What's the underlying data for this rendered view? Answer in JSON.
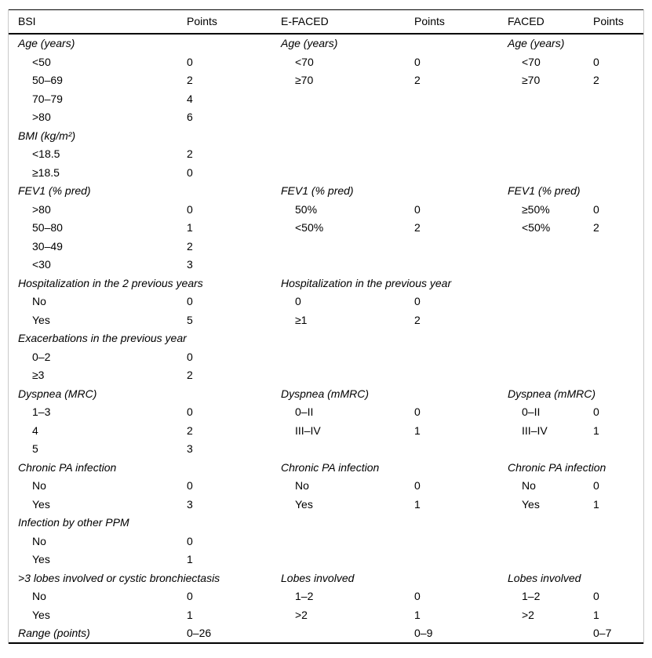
{
  "colors": {
    "background": "#ffffff",
    "text": "#000000",
    "rule": "#000000",
    "frame_border": "#c9c9c9"
  },
  "table": {
    "headers": [
      "BSI",
      "Points",
      "E-FACED",
      "Points",
      "FACED",
      "Points"
    ],
    "rows": [
      [
        [
          "Age (years)",
          "sec"
        ],
        [
          "",
          ""
        ],
        [
          "Age (years)",
          "sec"
        ],
        [
          "",
          ""
        ],
        [
          "Age (years)",
          "sec"
        ],
        [
          "",
          ""
        ]
      ],
      [
        [
          "<50",
          "item"
        ],
        [
          "0",
          ""
        ],
        [
          "<70",
          "item"
        ],
        [
          "0",
          ""
        ],
        [
          "<70",
          "item"
        ],
        [
          "0",
          ""
        ]
      ],
      [
        [
          "50–69",
          "item"
        ],
        [
          "2",
          ""
        ],
        [
          "≥70",
          "item"
        ],
        [
          "2",
          ""
        ],
        [
          "≥70",
          "item"
        ],
        [
          "2",
          ""
        ]
      ],
      [
        [
          "70–79",
          "item"
        ],
        [
          "4",
          ""
        ],
        [
          "",
          ""
        ],
        [
          "",
          ""
        ],
        [
          "",
          ""
        ],
        [
          "",
          ""
        ]
      ],
      [
        [
          ">80",
          "item"
        ],
        [
          "6",
          ""
        ],
        [
          "",
          ""
        ],
        [
          "",
          ""
        ],
        [
          "",
          ""
        ],
        [
          "",
          ""
        ]
      ],
      [
        [
          "BMI (kg/m²)",
          "sec"
        ],
        [
          "",
          ""
        ],
        [
          "",
          ""
        ],
        [
          "",
          ""
        ],
        [
          "",
          ""
        ],
        [
          "",
          ""
        ]
      ],
      [
        [
          "<18.5",
          "item"
        ],
        [
          "2",
          ""
        ],
        [
          "",
          ""
        ],
        [
          "",
          ""
        ],
        [
          "",
          ""
        ],
        [
          "",
          ""
        ]
      ],
      [
        [
          "≥18.5",
          "item"
        ],
        [
          "0",
          ""
        ],
        [
          "",
          ""
        ],
        [
          "",
          ""
        ],
        [
          "",
          ""
        ],
        [
          "",
          ""
        ]
      ],
      [
        [
          "FEV1 (% pred)",
          "sec"
        ],
        [
          "",
          ""
        ],
        [
          "FEV1 (% pred)",
          "sec"
        ],
        [
          "",
          ""
        ],
        [
          "FEV1 (% pred)",
          "sec"
        ],
        [
          "",
          ""
        ]
      ],
      [
        [
          ">80",
          "item"
        ],
        [
          "0",
          ""
        ],
        [
          "50%",
          "item"
        ],
        [
          "0",
          ""
        ],
        [
          "≥50%",
          "item"
        ],
        [
          "0",
          ""
        ]
      ],
      [
        [
          "50–80",
          "item"
        ],
        [
          "1",
          ""
        ],
        [
          "<50%",
          "item"
        ],
        [
          "2",
          ""
        ],
        [
          "<50%",
          "item"
        ],
        [
          "2",
          ""
        ]
      ],
      [
        [
          "30–49",
          "item"
        ],
        [
          "2",
          ""
        ],
        [
          "",
          ""
        ],
        [
          "",
          ""
        ],
        [
          "",
          ""
        ],
        [
          "",
          ""
        ]
      ],
      [
        [
          "<30",
          "item"
        ],
        [
          "3",
          ""
        ],
        [
          "",
          ""
        ],
        [
          "",
          ""
        ],
        [
          "",
          ""
        ],
        [
          "",
          ""
        ]
      ],
      [
        [
          "Hospitalization in the 2 previous years",
          "sec"
        ],
        [
          "",
          ""
        ],
        [
          "Hospitalization in the previous year",
          "sec"
        ],
        [
          "",
          ""
        ],
        [
          "",
          ""
        ],
        [
          "",
          ""
        ]
      ],
      [
        [
          "No",
          "item"
        ],
        [
          "0",
          ""
        ],
        [
          "0",
          "item"
        ],
        [
          "0",
          ""
        ],
        [
          "",
          ""
        ],
        [
          "",
          ""
        ]
      ],
      [
        [
          "Yes",
          "item"
        ],
        [
          "5",
          ""
        ],
        [
          "≥1",
          "item"
        ],
        [
          "2",
          ""
        ],
        [
          "",
          ""
        ],
        [
          "",
          ""
        ]
      ],
      [
        [
          "Exacerbations in the previous year",
          "sec"
        ],
        [
          "",
          ""
        ],
        [
          "",
          ""
        ],
        [
          "",
          ""
        ],
        [
          "",
          ""
        ],
        [
          "",
          ""
        ]
      ],
      [
        [
          "0–2",
          "item"
        ],
        [
          "0",
          ""
        ],
        [
          "",
          ""
        ],
        [
          "",
          ""
        ],
        [
          "",
          ""
        ],
        [
          "",
          ""
        ]
      ],
      [
        [
          "≥3",
          "item"
        ],
        [
          "2",
          ""
        ],
        [
          "",
          ""
        ],
        [
          "",
          ""
        ],
        [
          "",
          ""
        ],
        [
          "",
          ""
        ]
      ],
      [
        [
          "Dyspnea (MRC)",
          "sec"
        ],
        [
          "",
          ""
        ],
        [
          "Dyspnea (mMRC)",
          "sec"
        ],
        [
          "",
          ""
        ],
        [
          "Dyspnea (mMRC)",
          "sec"
        ],
        [
          "",
          ""
        ]
      ],
      [
        [
          "1–3",
          "item"
        ],
        [
          "0",
          ""
        ],
        [
          "0–II",
          "item"
        ],
        [
          "0",
          ""
        ],
        [
          "0–II",
          "item"
        ],
        [
          "0",
          ""
        ]
      ],
      [
        [
          "4",
          "item"
        ],
        [
          "2",
          ""
        ],
        [
          "III–IV",
          "item"
        ],
        [
          "1",
          ""
        ],
        [
          "III–IV",
          "item"
        ],
        [
          "1",
          ""
        ]
      ],
      [
        [
          "5",
          "item"
        ],
        [
          "3",
          ""
        ],
        [
          "",
          ""
        ],
        [
          "",
          ""
        ],
        [
          "",
          ""
        ],
        [
          "",
          ""
        ]
      ],
      [
        [
          "Chronic PA infection",
          "sec"
        ],
        [
          "",
          ""
        ],
        [
          "Chronic PA infection",
          "sec"
        ],
        [
          "",
          ""
        ],
        [
          "Chronic PA infection",
          "sec"
        ],
        [
          "",
          ""
        ]
      ],
      [
        [
          "No",
          "item"
        ],
        [
          "0",
          ""
        ],
        [
          "No",
          "item"
        ],
        [
          "0",
          ""
        ],
        [
          "No",
          "item"
        ],
        [
          "0",
          ""
        ]
      ],
      [
        [
          "Yes",
          "item"
        ],
        [
          "3",
          ""
        ],
        [
          "Yes",
          "item"
        ],
        [
          "1",
          ""
        ],
        [
          "Yes",
          "item"
        ],
        [
          "1",
          ""
        ]
      ],
      [
        [
          "Infection by other PPM",
          "sec"
        ],
        [
          "",
          ""
        ],
        [
          "",
          ""
        ],
        [
          "",
          ""
        ],
        [
          "",
          ""
        ],
        [
          "",
          ""
        ]
      ],
      [
        [
          "No",
          "item"
        ],
        [
          "0",
          ""
        ],
        [
          "",
          ""
        ],
        [
          "",
          ""
        ],
        [
          "",
          ""
        ],
        [
          "",
          ""
        ]
      ],
      [
        [
          "Yes",
          "item"
        ],
        [
          "1",
          ""
        ],
        [
          "",
          ""
        ],
        [
          "",
          ""
        ],
        [
          "",
          ""
        ],
        [
          "",
          ""
        ]
      ],
      [
        [
          ">3 lobes involved or cystic bronchiectasis",
          "sec"
        ],
        [
          "",
          ""
        ],
        [
          "Lobes involved",
          "sec"
        ],
        [
          "",
          ""
        ],
        [
          "Lobes involved",
          "sec"
        ],
        [
          "",
          ""
        ]
      ],
      [
        [
          "No",
          "item"
        ],
        [
          "0",
          ""
        ],
        [
          "1–2",
          "item"
        ],
        [
          "0",
          ""
        ],
        [
          "1–2",
          "item"
        ],
        [
          "0",
          ""
        ]
      ],
      [
        [
          "Yes",
          "item"
        ],
        [
          "1",
          ""
        ],
        [
          ">2",
          "item"
        ],
        [
          "1",
          ""
        ],
        [
          ">2",
          "item"
        ],
        [
          "1",
          ""
        ]
      ],
      [
        [
          "Range (points)",
          "sec"
        ],
        [
          "0–26",
          ""
        ],
        [
          "",
          ""
        ],
        [
          "0–9",
          ""
        ],
        [
          "",
          ""
        ],
        [
          "0–7",
          ""
        ]
      ]
    ]
  }
}
